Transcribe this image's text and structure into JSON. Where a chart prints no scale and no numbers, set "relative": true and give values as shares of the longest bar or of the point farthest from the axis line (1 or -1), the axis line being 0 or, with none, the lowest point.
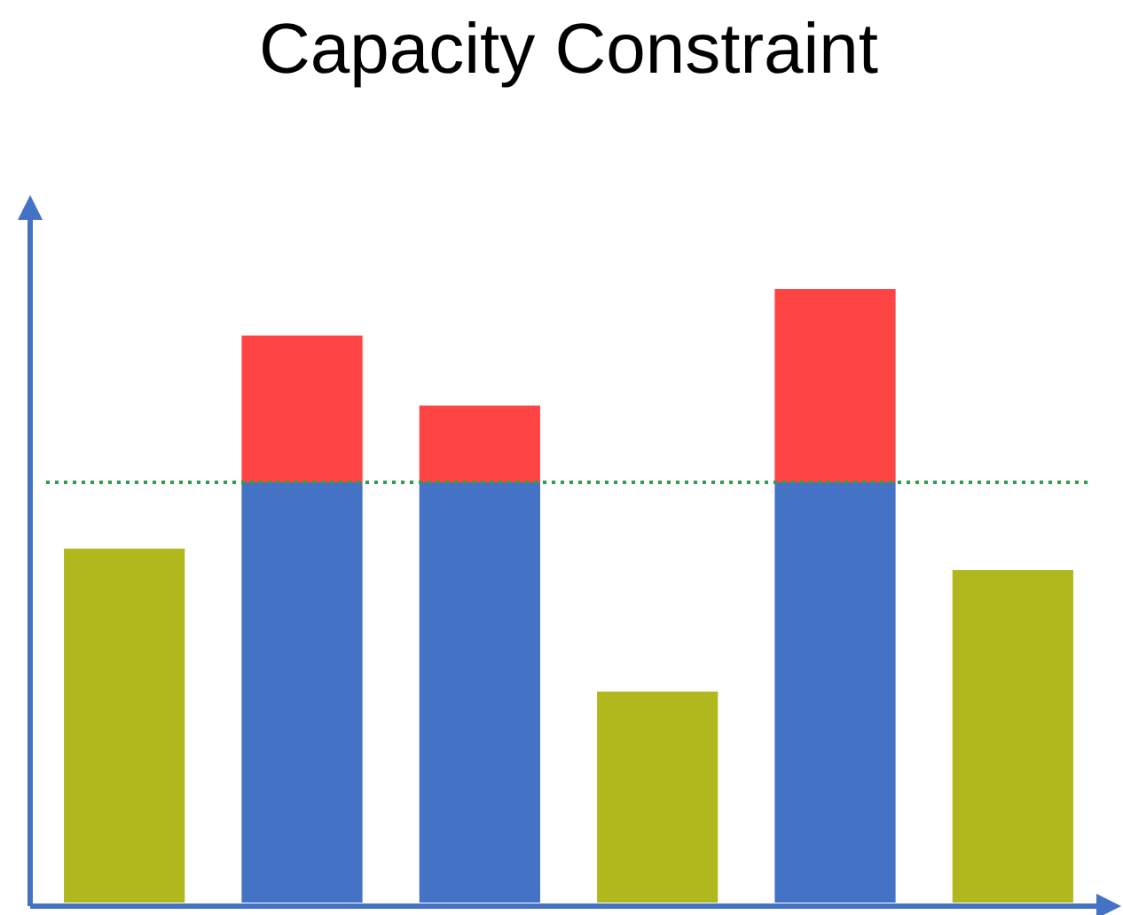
{
  "chart_data": {
    "type": "bar",
    "title": "Capacity Constraint",
    "relative": true,
    "stacked": true,
    "legend": false,
    "categories": [
      null,
      null,
      null,
      null,
      null,
      null
    ],
    "series": [
      {
        "colors": [
          "#b0b81e",
          "#4472c4",
          "#4472c4",
          "#b0b81e",
          "#4472c4",
          "#b0b81e"
        ],
        "values": [
          0.577,
          0.685,
          0.685,
          0.344,
          0.685,
          0.542
        ]
      },
      {
        "color": "#ff4444",
        "values": [
          null,
          0.239,
          0.125,
          null,
          0.315,
          null
        ]
      }
    ],
    "ref_lines": [
      {
        "axis": "y",
        "value": 0.685,
        "color": "#2e9e4a",
        "line_style": "dotted"
      }
    ]
  }
}
